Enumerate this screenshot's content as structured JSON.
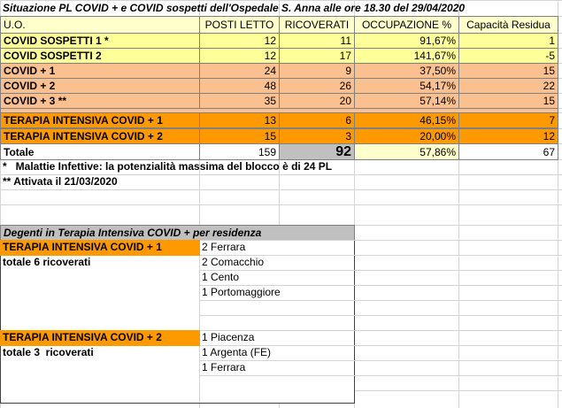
{
  "header": {
    "title": "Situazione PL COVID + e COVID sospetti dell'Ospedale S. Anna alle ore 18.30 del 29/04/2020"
  },
  "table": {
    "columns": [
      "U.O.",
      "POSTI LETTO",
      "RICOVERATI",
      "OCCUPAZIONE %",
      "Capacità Residua"
    ],
    "rows": [
      [
        "COVID SOSPETTI 1 *",
        "12",
        "11",
        "91,67%",
        "1"
      ],
      [
        "COVID SOSPETTI 2",
        "12",
        "17",
        "141,67%",
        "-5"
      ],
      [
        "COVID + 1",
        "24",
        "9",
        "37,50%",
        "15"
      ],
      [
        "COVID + 2",
        "48",
        "26",
        "54,17%",
        "22"
      ],
      [
        "COVID + 3 **",
        "35",
        "20",
        "57,14%",
        "15"
      ],
      [
        "TERAPIA INTENSIVA COVID + 1",
        "13",
        "6",
        "46,15%",
        "7"
      ],
      [
        "TERAPIA INTENSIVA COVID + 2",
        "15",
        "3",
        "20,00%",
        "12"
      ]
    ],
    "total": [
      "Totale",
      "159",
      "92",
      "57,86%",
      "67"
    ]
  },
  "notes": [
    "*   Malattie Infettive: la potenzialità massima del blocco è di 24 PL",
    "** Attivata il 21/03/2020"
  ],
  "residence_table": {
    "title": "Degenti in Terapia Intensiva COVID + per residenza",
    "groups": [
      {
        "unit": "TERAPIA INTENSIVA COVID + 1",
        "summary": "totale 6 ricoverati",
        "places": [
          "2 Ferrara",
          "2 Comacchio",
          "1 Cento",
          "1 Portomaggiore"
        ]
      },
      {
        "unit": "TERAPIA INTENSIVA COVID + 2",
        "summary": "totale 3  ricoverati",
        "places": [
          "1 Piacenza",
          "1 Argenta (FE)",
          "1 Ferrara"
        ]
      }
    ]
  }
}
